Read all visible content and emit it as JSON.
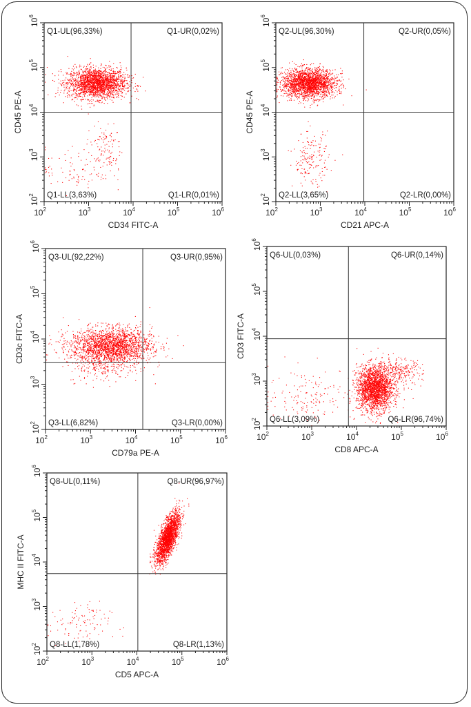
{
  "colors": {
    "points": "#ff0000",
    "axes": "#222222",
    "gate": "#333333"
  },
  "chart_data": [
    {
      "type": "scatter",
      "scale": "log",
      "xlim": [
        100,
        1000000
      ],
      "ylim": [
        100,
        1000000
      ],
      "xticks": [
        "10",
        "10",
        "10",
        "10",
        "10"
      ],
      "tick_exponents": [
        "2",
        "3",
        "4",
        "5",
        "6"
      ],
      "xlabel": "CD34 FITC-A",
      "ylabel": "CD45 PE-A",
      "gate": {
        "x": 9000,
        "y": 10000
      },
      "quadrants": {
        "UL": "Q1-UL(96,33%)",
        "UR": "Q1-UR(0,02%)",
        "LL": "Q1-LL(3,63%)",
        "LR": "Q1-LR(0,01%)"
      },
      "populations": [
        {
          "cx": 1500,
          "cy": 45000,
          "sx": 0.33,
          "sy": 0.17,
          "n": 2200
        },
        {
          "cx": 2200,
          "cy": 1600,
          "sx": 0.2,
          "sy": 0.28,
          "n": 110
        },
        {
          "cx": 500,
          "cy": 500,
          "sx": 0.4,
          "sy": 0.25,
          "n": 90
        }
      ]
    },
    {
      "type": "scatter",
      "scale": "log",
      "xlim": [
        100,
        1000000
      ],
      "ylim": [
        100,
        1000000
      ],
      "tick_exponents": [
        "2",
        "3",
        "4",
        "5",
        "6"
      ],
      "xlabel": "CD21 APC-A",
      "ylabel": "CD45 PE-A",
      "gate": {
        "x": 9500,
        "y": 10000
      },
      "quadrants": {
        "UL": "Q2-UL(96,30%)",
        "UR": "Q2-UR(0,05%)",
        "LL": "Q2-LL(3,65%)",
        "LR": "Q2-LR(0,00%)"
      },
      "populations": [
        {
          "cx": 550,
          "cy": 45000,
          "sx": 0.3,
          "sy": 0.16,
          "n": 2200
        },
        {
          "cx": 600,
          "cy": 900,
          "sx": 0.2,
          "sy": 0.3,
          "n": 170
        }
      ]
    },
    {
      "type": "scatter",
      "scale": "log",
      "xlim": [
        100,
        1000000
      ],
      "ylim": [
        100,
        1000000
      ],
      "tick_exponents": [
        "2",
        "3",
        "4",
        "5",
        "6"
      ],
      "xlabel": "CD79a PE-A",
      "ylabel": "CD3c FITC-A",
      "gate": {
        "x": 14500,
        "y": 3000
      },
      "quadrants": {
        "UL": "Q3-UL(92,22%)",
        "UR": "Q3-UR(0,95%)",
        "LL": "Q3-LL(6,82%)",
        "LR": "Q3-LR(0,00%)"
      },
      "populations": [
        {
          "cx": 2800,
          "cy": 7000,
          "sx": 0.45,
          "sy": 0.2,
          "n": 2200
        },
        {
          "cx": 2000,
          "cy": 2200,
          "sx": 0.4,
          "sy": 0.15,
          "n": 150
        }
      ]
    },
    {
      "type": "scatter",
      "scale": "log",
      "xlim": [
        100,
        1000000
      ],
      "ylim": [
        100,
        1000000
      ],
      "tick_exponents": [
        "2",
        "3",
        "4",
        "5",
        "6"
      ],
      "xlabel": "CD8 APC-A",
      "ylabel": "CD3 FITC-A",
      "gate": {
        "x": 6600,
        "y": 8800
      },
      "quadrants": {
        "UL": "Q6-UL(0,03%)",
        "UR": "Q6-UR(0,14%)",
        "LL": "Q6-LL(3,09%)",
        "LR": "Q6-LR(96,74%)"
      },
      "populations": [
        {
          "cx": 25000,
          "cy": 700,
          "sx": 0.2,
          "sy": 0.25,
          "n": 2200
        },
        {
          "cx": 90000,
          "cy": 1600,
          "sx": 0.25,
          "sy": 0.15,
          "n": 250
        },
        {
          "cx": 900,
          "cy": 500,
          "sx": 0.5,
          "sy": 0.3,
          "n": 150
        }
      ]
    },
    {
      "type": "scatter",
      "scale": "log",
      "xlim": [
        100,
        1000000
      ],
      "ylim": [
        100,
        1000000
      ],
      "tick_exponents": [
        "2",
        "3",
        "4",
        "5",
        "6"
      ],
      "xlabel": "CD5 APC-A",
      "ylabel": "MHC II FITC-A",
      "gate": {
        "x": 10500,
        "y": 5500
      },
      "quadrants": {
        "UL": "Q8-UL(0,11%)",
        "UR": "Q8-UR(96,97%)",
        "LL": "Q8-LL(1,78%)",
        "LR": "Q8-LR(1,13%)"
      },
      "populations": [
        {
          "cx": 48000,
          "cy": 35000,
          "sx": 0.13,
          "sy": 0.28,
          "n": 2200,
          "corr": 0.7
        },
        {
          "cx": 500,
          "cy": 400,
          "sx": 0.35,
          "sy": 0.25,
          "n": 100
        }
      ]
    }
  ]
}
